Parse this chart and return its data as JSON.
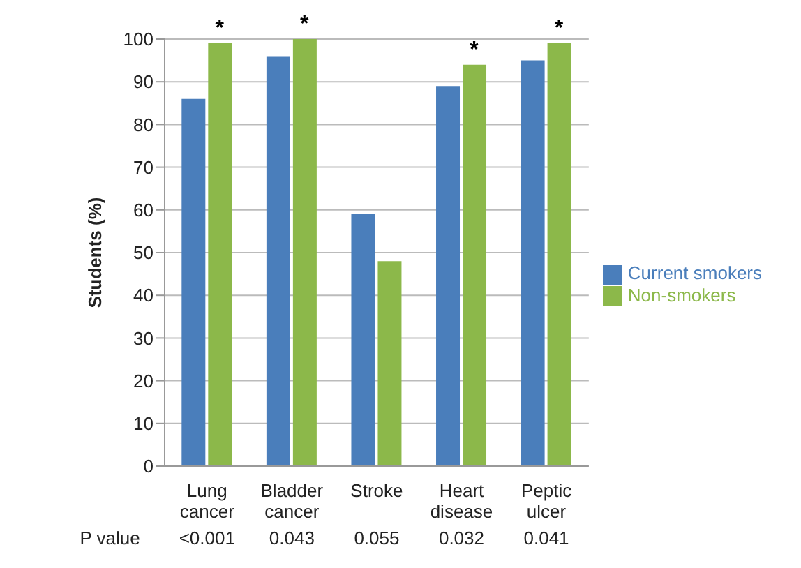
{
  "chart_data": {
    "type": "bar",
    "ylabel": "Students (%)",
    "categories": [
      "Lung cancer",
      "Bladder cancer",
      "Stroke",
      "Heart disease",
      "Peptic ulcer"
    ],
    "series": [
      {
        "name": "Current smokers",
        "color": "#4a7ebb",
        "values": [
          86,
          96,
          59,
          89,
          95
        ]
      },
      {
        "name": "Non-smokers",
        "color": "#8cb84a",
        "values": [
          99,
          100,
          48,
          94,
          99
        ]
      }
    ],
    "ylim": [
      0,
      100
    ],
    "yticks": [
      0,
      10,
      20,
      30,
      40,
      50,
      60,
      70,
      80,
      90,
      100
    ],
    "grid": "y",
    "legend": "right",
    "annotations": [
      {
        "text": "*",
        "x": "Lung cancer",
        "y": 99
      },
      {
        "text": "*",
        "x": "Bladder cancer",
        "y": 100
      },
      {
        "text": "*",
        "x": "Heart disease",
        "y": 94
      },
      {
        "text": "*",
        "x": "Peptic ulcer",
        "y": 99
      },
      "P value",
      "<0.001",
      "0.043",
      "0.055",
      "0.032",
      "0.041"
    ]
  }
}
